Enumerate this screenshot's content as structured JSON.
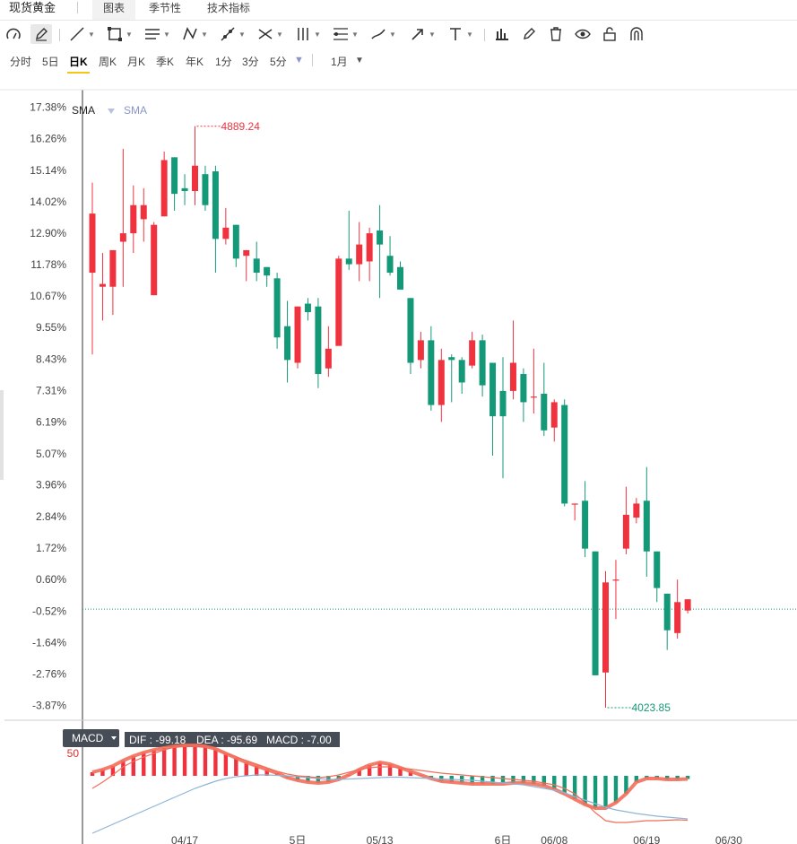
{
  "header": {
    "title": "现货黄金",
    "tabs": [
      {
        "label": "图表",
        "active": true
      },
      {
        "label": "季节性",
        "active": false
      },
      {
        "label": "技术指标",
        "active": false
      }
    ]
  },
  "toolbar": {
    "tools": [
      "measure-icon",
      "pencil-icon",
      "line-icon",
      "rectangle-icon",
      "parallel-lines-icon",
      "zigzag-icon",
      "ray-icon",
      "crossing-lines-icon",
      "fork-icon",
      "fib-icon",
      "brush-icon",
      "arrow-icon",
      "text-icon",
      "chart-bars-icon",
      "edit-icon",
      "trash-icon",
      "eye-icon",
      "lock-icon",
      "magnet-icon"
    ]
  },
  "periods": {
    "items": [
      "分时",
      "5日",
      "日K",
      "周K",
      "月K",
      "季K",
      "年K",
      "1分",
      "3分",
      "5分"
    ],
    "active": "日K",
    "more_icon": "triangle-down-icon",
    "range_label": "1月",
    "range_icon": "triangle-down-icon"
  },
  "colors": {
    "up": "#f0323f",
    "down": "#149978",
    "macd_line": "#f26e5a",
    "signal_line": "#8fb5d6"
  },
  "chart_data": [
    {
      "type": "candlestick",
      "indicators": [
        "SMA",
        "SMA"
      ],
      "y_axis_labels": [
        "17.38%",
        "16.26%",
        "15.14%",
        "14.02%",
        "12.90%",
        "11.78%",
        "10.67%",
        "9.55%",
        "8.43%",
        "7.31%",
        "6.19%",
        "5.07%",
        "3.96%",
        "2.84%",
        "1.72%",
        "0.60%",
        "-0.52%",
        "-1.64%",
        "-2.76%",
        "-3.87%"
      ],
      "ylim": [
        -4.3,
        18.0
      ],
      "x_tick_labels": [
        "04/17",
        "5日",
        "05/13",
        "6日",
        "06/08",
        "06/19",
        "06/30"
      ],
      "x_tick_index": [
        9,
        20,
        28,
        40,
        45,
        54,
        62
      ],
      "reference_line": -0.45,
      "max_label": "4889.24",
      "min_label": "4023.85",
      "candles": [
        {
          "o": 11.5,
          "h": 14.7,
          "l": 8.6,
          "c": 13.6
        },
        {
          "o": 11.0,
          "h": 12.2,
          "l": 9.8,
          "c": 11.1
        },
        {
          "o": 11.0,
          "h": 12.3,
          "l": 10.0,
          "c": 12.3
        },
        {
          "o": 12.6,
          "h": 15.9,
          "l": 11.0,
          "c": 12.9
        },
        {
          "o": 12.9,
          "h": 14.6,
          "l": 12.2,
          "c": 13.9
        },
        {
          "o": 13.4,
          "h": 14.5,
          "l": 12.6,
          "c": 13.9
        },
        {
          "o": 10.7,
          "h": 13.3,
          "l": 10.7,
          "c": 13.2
        },
        {
          "o": 13.5,
          "h": 15.8,
          "l": 13.5,
          "c": 15.5
        },
        {
          "o": 15.6,
          "h": 15.6,
          "l": 13.7,
          "c": 14.3
        },
        {
          "o": 14.5,
          "h": 15.0,
          "l": 13.9,
          "c": 14.4
        },
        {
          "o": 14.4,
          "h": 16.7,
          "l": 13.9,
          "c": 15.3
        },
        {
          "o": 15.0,
          "h": 15.3,
          "l": 13.7,
          "c": 13.9
        },
        {
          "o": 15.1,
          "h": 15.3,
          "l": 11.5,
          "c": 12.7
        },
        {
          "o": 12.7,
          "h": 13.8,
          "l": 12.5,
          "c": 13.1
        },
        {
          "o": 13.2,
          "h": 13.2,
          "l": 11.7,
          "c": 12.0
        },
        {
          "o": 12.1,
          "h": 12.3,
          "l": 11.2,
          "c": 12.3
        },
        {
          "o": 12.0,
          "h": 12.6,
          "l": 11.2,
          "c": 11.5
        },
        {
          "o": 11.7,
          "h": 11.7,
          "l": 11.0,
          "c": 11.4
        },
        {
          "o": 11.3,
          "h": 11.5,
          "l": 8.8,
          "c": 9.2
        },
        {
          "o": 9.6,
          "h": 10.5,
          "l": 7.6,
          "c": 8.4
        },
        {
          "o": 8.3,
          "h": 10.3,
          "l": 8.1,
          "c": 10.3
        },
        {
          "o": 10.4,
          "h": 10.6,
          "l": 9.8,
          "c": 10.1
        },
        {
          "o": 10.3,
          "h": 10.6,
          "l": 7.4,
          "c": 7.9
        },
        {
          "o": 8.1,
          "h": 9.6,
          "l": 7.8,
          "c": 8.8
        },
        {
          "o": 8.9,
          "h": 12.1,
          "l": 8.9,
          "c": 12.0
        },
        {
          "o": 12.0,
          "h": 13.7,
          "l": 11.6,
          "c": 11.8
        },
        {
          "o": 11.8,
          "h": 13.3,
          "l": 11.2,
          "c": 12.5
        },
        {
          "o": 11.9,
          "h": 13.1,
          "l": 11.2,
          "c": 12.9
        },
        {
          "o": 13.0,
          "h": 13.9,
          "l": 10.6,
          "c": 12.5
        },
        {
          "o": 12.1,
          "h": 12.8,
          "l": 11.4,
          "c": 11.5
        },
        {
          "o": 11.7,
          "h": 11.9,
          "l": 10.9,
          "c": 10.9
        },
        {
          "o": 10.6,
          "h": 10.6,
          "l": 7.9,
          "c": 8.3
        },
        {
          "o": 8.4,
          "h": 9.4,
          "l": 8.1,
          "c": 9.1
        },
        {
          "o": 9.1,
          "h": 9.6,
          "l": 6.6,
          "c": 6.8
        },
        {
          "o": 6.8,
          "h": 8.8,
          "l": 6.2,
          "c": 8.4
        },
        {
          "o": 8.5,
          "h": 8.6,
          "l": 6.9,
          "c": 8.4
        },
        {
          "o": 8.4,
          "h": 8.5,
          "l": 7.2,
          "c": 7.6
        },
        {
          "o": 8.2,
          "h": 9.4,
          "l": 8.1,
          "c": 9.1
        },
        {
          "o": 9.1,
          "h": 9.3,
          "l": 7.1,
          "c": 7.5
        },
        {
          "o": 8.3,
          "h": 8.3,
          "l": 5.0,
          "c": 6.4
        },
        {
          "o": 7.3,
          "h": 8.5,
          "l": 4.2,
          "c": 6.4
        },
        {
          "o": 7.3,
          "h": 9.8,
          "l": 7.0,
          "c": 8.3
        },
        {
          "o": 7.9,
          "h": 8.1,
          "l": 6.2,
          "c": 6.9
        },
        {
          "o": 7.1,
          "h": 8.8,
          "l": 6.5,
          "c": 7.1
        },
        {
          "o": 7.2,
          "h": 8.3,
          "l": 5.7,
          "c": 5.9
        },
        {
          "o": 6.0,
          "h": 7.0,
          "l": 5.5,
          "c": 6.9
        },
        {
          "o": 6.8,
          "h": 7.0,
          "l": 3.2,
          "c": 3.3
        },
        {
          "o": 3.3,
          "h": 3.3,
          "l": 2.7,
          "c": 3.3
        },
        {
          "o": 3.4,
          "h": 4.1,
          "l": 1.4,
          "c": 1.7
        },
        {
          "o": 1.6,
          "h": 1.6,
          "l": -2.8,
          "c": -2.8
        },
        {
          "o": -2.7,
          "h": 0.9,
          "l": -3.95,
          "c": 0.5
        },
        {
          "o": 0.6,
          "h": 1.3,
          "l": -0.8,
          "c": 0.6
        },
        {
          "o": 1.7,
          "h": 3.9,
          "l": 1.5,
          "c": 2.9
        },
        {
          "o": 2.8,
          "h": 3.5,
          "l": 2.6,
          "c": 3.3
        },
        {
          "o": 3.4,
          "h": 4.6,
          "l": 0.7,
          "c": 1.6
        },
        {
          "o": 1.6,
          "h": 1.6,
          "l": -0.2,
          "c": 0.3
        },
        {
          "o": 0.1,
          "h": 0.1,
          "l": -1.9,
          "c": -1.2
        },
        {
          "o": -1.3,
          "h": 0.6,
          "l": -1.5,
          "c": -0.2
        },
        {
          "o": -0.5,
          "h": -0.1,
          "l": -0.6,
          "c": -0.1
        }
      ]
    },
    {
      "type": "line",
      "indicator": "MACD",
      "legend": {
        "dif_label": "DIF : -99.18",
        "dea_label": "DEA : -95.69",
        "macd_label": "MACD : -7.00"
      },
      "y_tick_labels": [
        "50"
      ],
      "ylim": [
        -130,
        70
      ],
      "series": [
        {
          "name": "DIF",
          "values": [
            -28,
            -14,
            2,
            20,
            32,
            42,
            50,
            58,
            64,
            67,
            68,
            66,
            60,
            50,
            42,
            34,
            26,
            18,
            10,
            4,
            0,
            -2,
            -4,
            -2,
            2,
            8,
            14,
            18,
            20,
            20,
            18,
            15,
            12,
            9,
            6,
            4,
            2,
            0,
            -2,
            -4,
            -6,
            -8,
            -10,
            -12,
            -16,
            -20,
            -28,
            -40,
            -60,
            -82,
            -100,
            -104,
            -104,
            -102,
            -100,
            -100,
            -99,
            -98,
            -99
          ]
        },
        {
          "name": "DEA",
          "values": [
            -128,
            -118,
            -108,
            -98,
            -88,
            -78,
            -68,
            -58,
            -48,
            -38,
            -28,
            -20,
            -12,
            -6,
            -2,
            0,
            2,
            2,
            1,
            0,
            -2,
            -4,
            -6,
            -8,
            -8,
            -7,
            -6,
            -5,
            -4,
            -3,
            -3,
            -4,
            -5,
            -6,
            -7,
            -8,
            -9,
            -10,
            -12,
            -14,
            -16,
            -18,
            -20,
            -24,
            -28,
            -32,
            -38,
            -46,
            -54,
            -62,
            -70,
            -76,
            -80,
            -84,
            -87,
            -90,
            -92,
            -94,
            -96
          ]
        },
        {
          "name": "MACD",
          "values": [
            8,
            14,
            22,
            34,
            44,
            52,
            58,
            62,
            66,
            68,
            68,
            66,
            60,
            50,
            40,
            30,
            22,
            14,
            6,
            -4,
            -10,
            -14,
            -16,
            -14,
            -8,
            2,
            14,
            24,
            30,
            26,
            18,
            10,
            2,
            -6,
            -12,
            -14,
            -16,
            -18,
            -18,
            -18,
            -18,
            -16,
            -16,
            -18,
            -22,
            -30,
            -40,
            -52,
            -64,
            -72,
            -72,
            -60,
            -40,
            -14,
            -6,
            -6,
            -8,
            -8,
            -7
          ]
        }
      ]
    }
  ]
}
